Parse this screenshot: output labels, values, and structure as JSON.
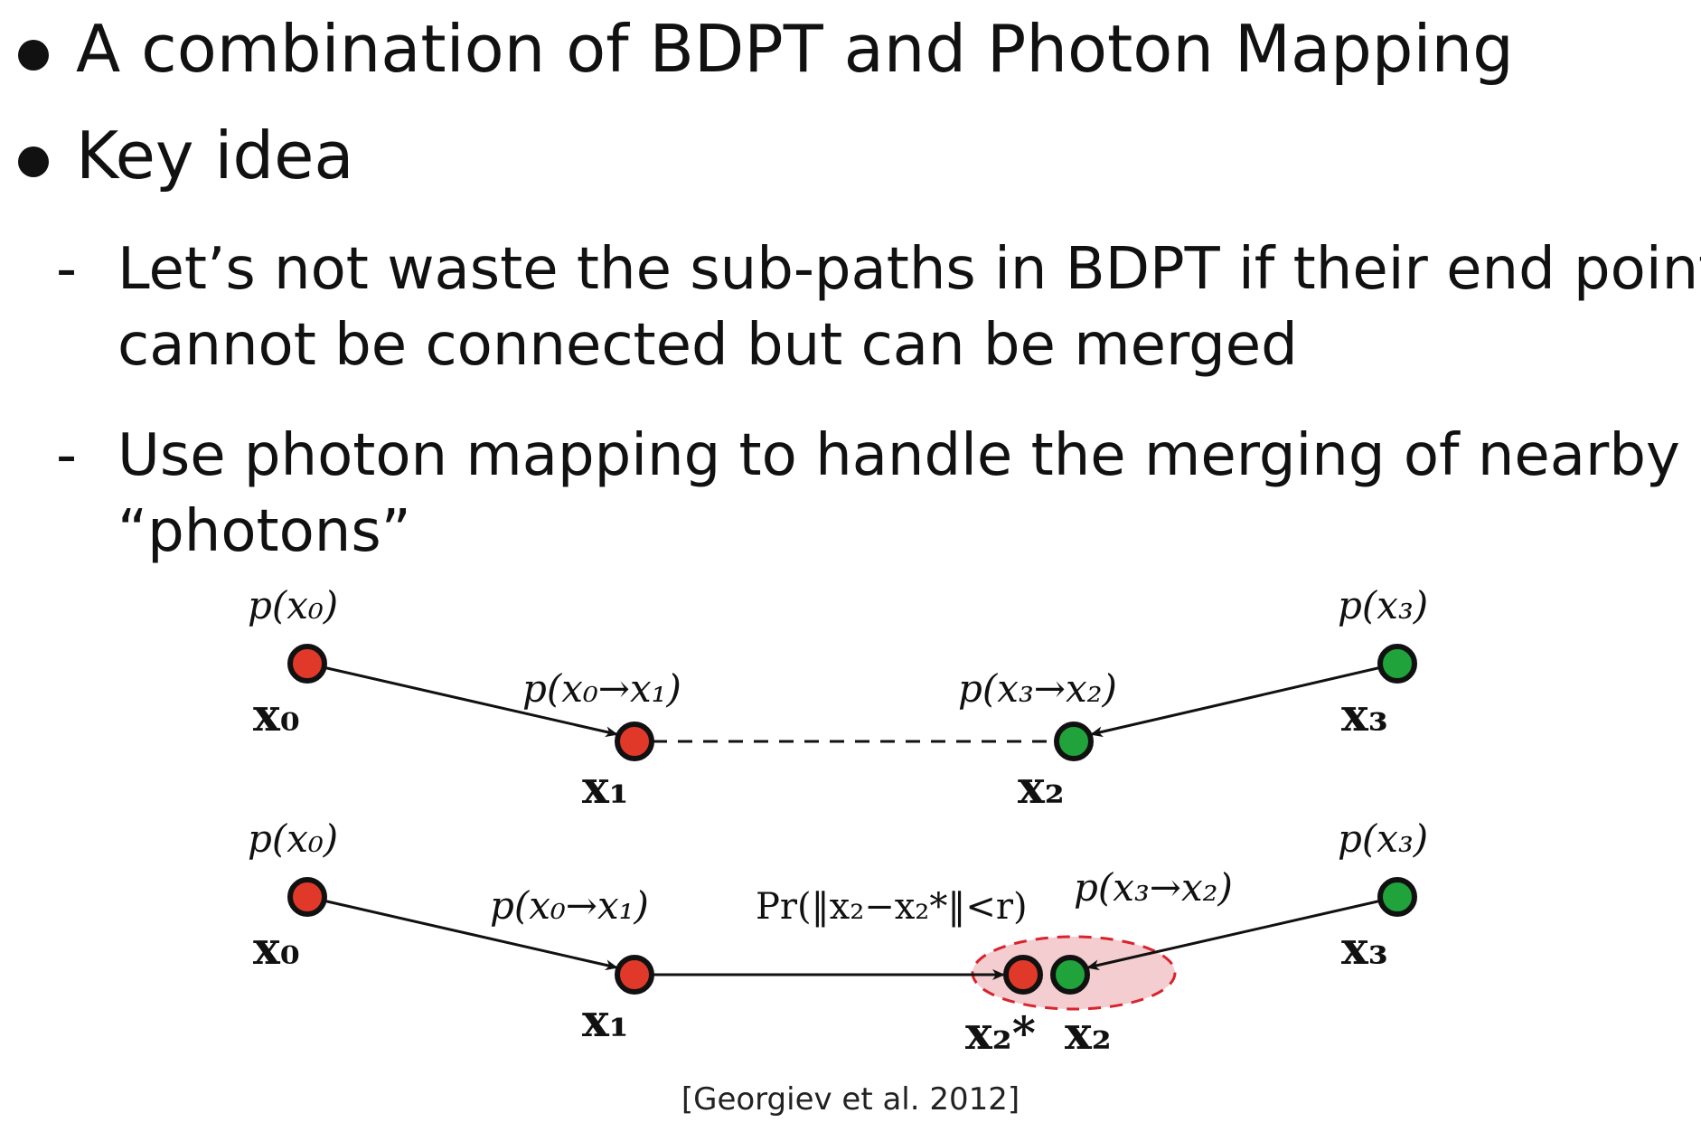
{
  "colors": {
    "text": "#111111",
    "red_node": "#e0392a",
    "green_node": "#1fa33a",
    "node_outline": "#111111",
    "merge_ellipse_fill": "#f3cdcf",
    "merge_ellipse_stroke": "#d9232d"
  },
  "bullets": [
    {
      "icon": "filled-circle",
      "text": "A combination of BDPT and Photon Mapping"
    },
    {
      "icon": "filled-circle",
      "text": "Key idea"
    }
  ],
  "sub_bullets": [
    {
      "marker": "-",
      "lines": [
        "Let’s not waste the sub-paths in BDPT if their end points",
        "cannot be connected but can be merged"
      ]
    },
    {
      "marker": "-",
      "lines": [
        "Use photon mapping to handle the merging of nearby",
        "“photons”"
      ]
    }
  ],
  "diagram": {
    "top": {
      "p_x0": "p(x₀)",
      "p_x3": "p(x₃)",
      "p_x0_x1": "p(x₀→x₁)",
      "p_x3_x2": "p(x₃→x₂)",
      "x0": "x₀",
      "x1": "x₁",
      "x2": "x₂",
      "x3": "x₃"
    },
    "bottom": {
      "p_x0": "p(x₀)",
      "p_x3": "p(x₃)",
      "p_x0_x1": "p(x₀→x₁)",
      "pr_merge": "Pr(‖x₂−x₂*‖<r)",
      "p_x3_x2": "p(x₃→x₂)",
      "x0": "x₀",
      "x1": "x₁",
      "x2star": "x₂*",
      "x2": "x₂",
      "x3": "x₃"
    }
  },
  "citation": "[Georgiev et al. 2012]"
}
